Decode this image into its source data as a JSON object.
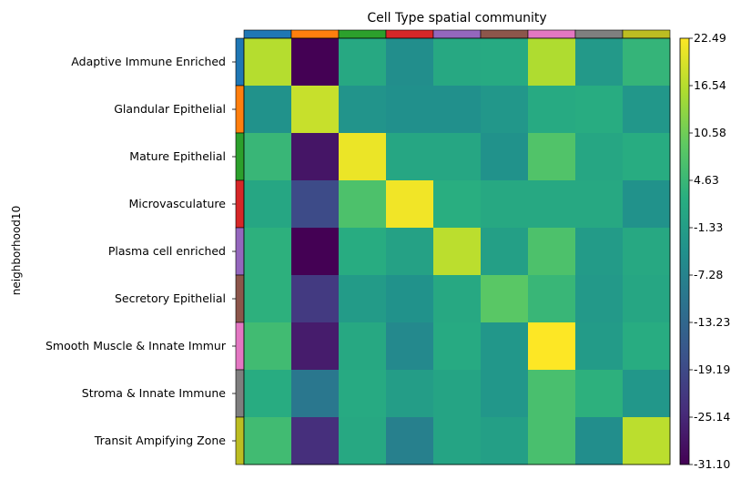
{
  "chart_data": {
    "type": "heatmap",
    "title": "Cell Type spatial community",
    "ylabel": "neighborhood10",
    "xlabel": "",
    "rows": [
      "Adaptive Immune Enriched",
      "Glandular Epithelial",
      "Mature Epithelial",
      "Microvasculature",
      "Plasma cell enriched",
      "Secretory Epithelial",
      "Smooth Muscle & Innate Immur",
      "Stroma & Innate Immune",
      "Transit Ampifying Zone"
    ],
    "column_colors": [
      "#1f77b4",
      "#ff7f0e",
      "#2ca02c",
      "#d62728",
      "#9467bd",
      "#8c564b",
      "#e377c2",
      "#7f7f7f",
      "#bcbd22"
    ],
    "row_colors": [
      "#1f77b4",
      "#ff7f0e",
      "#2ca02c",
      "#d62728",
      "#9467bd",
      "#8c564b",
      "#e377c2",
      "#7f7f7f",
      "#bcbd22"
    ],
    "values": [
      [
        16.5,
        -31.1,
        1.0,
        -5.0,
        1.0,
        1.5,
        16.0,
        -2.5,
        4.0
      ],
      [
        -4.0,
        18.0,
        -3.5,
        -4.5,
        -4.5,
        -3.0,
        1.5,
        2.0,
        -3.0
      ],
      [
        4.5,
        -28.0,
        21.0,
        0.5,
        0.5,
        -4.0,
        7.5,
        0.5,
        2.0
      ],
      [
        0.5,
        -19.0,
        7.0,
        21.5,
        2.5,
        1.0,
        1.0,
        1.0,
        -4.0
      ],
      [
        3.0,
        -31.1,
        2.0,
        -0.5,
        17.0,
        -1.0,
        7.0,
        -2.0,
        1.0
      ],
      [
        3.0,
        -22.0,
        -2.0,
        -4.0,
        1.0,
        8.5,
        4.5,
        -2.5,
        0.5
      ],
      [
        5.5,
        -27.0,
        1.0,
        -6.0,
        1.5,
        -3.0,
        22.49,
        -2.0,
        2.0
      ],
      [
        2.0,
        -10.0,
        1.5,
        -1.5,
        0.0,
        -3.0,
        6.5,
        3.0,
        -3.0
      ],
      [
        5.5,
        -24.0,
        1.0,
        -8.0,
        0.0,
        -1.0,
        6.5,
        -5.0,
        17.0
      ]
    ],
    "colorbar": {
      "colormap": "viridis",
      "min": -31.1,
      "max": 22.49,
      "tick_labels": [
        "22.49",
        "16.54",
        "10.58",
        "4.63",
        "-1.33",
        "-7.28",
        "-13.23",
        "-19.19",
        "-25.14",
        "-31.10"
      ]
    }
  }
}
